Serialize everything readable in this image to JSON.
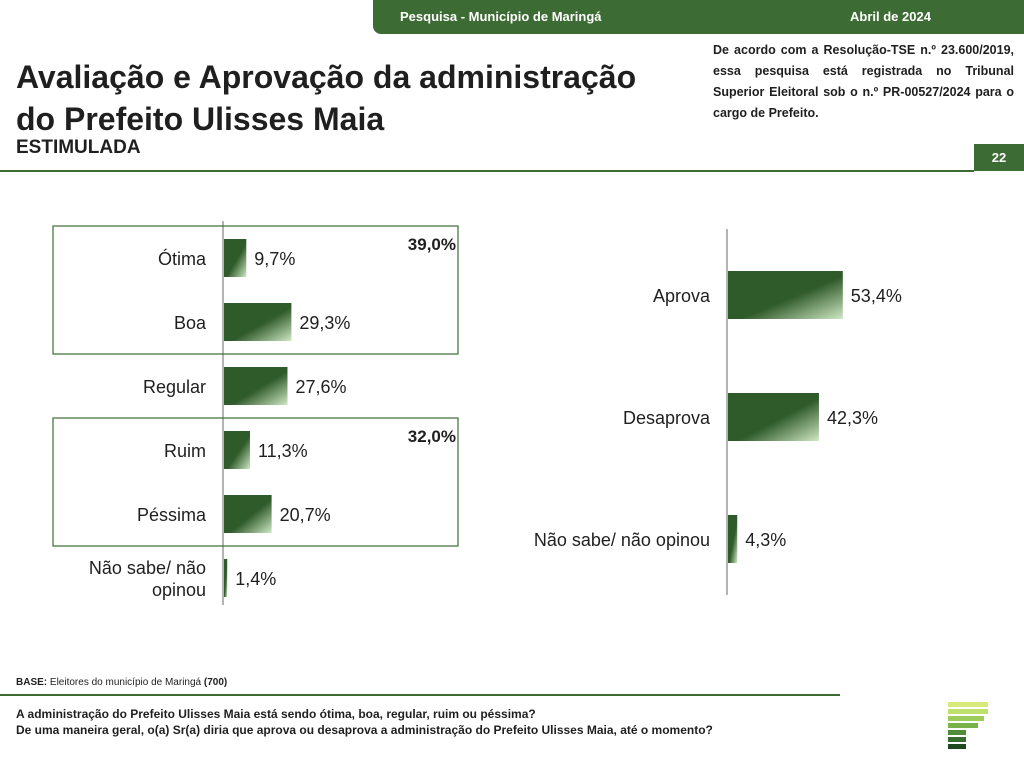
{
  "header": {
    "survey": "Pesquisa - Município de Maringá",
    "date": "Abril de 2024"
  },
  "title": {
    "line1": "Avaliação e Aprovação da administração",
    "line2": "do Prefeito Ulisses Maia",
    "subtitle": "ESTIMULADA"
  },
  "tse_note": "De acordo com a Resolução-TSE n.º 23.600/2019, essa pesquisa está registrada no Tribunal Superior Eleitoral sob o n.º PR-00527/2024 para o cargo de Prefeito.",
  "page_number": "22",
  "colors": {
    "brand": "#3d6b34",
    "bar_dark": "#2f5a29",
    "bar_light": "#cfe8c4"
  },
  "chart_data": [
    {
      "type": "bar",
      "orientation": "horizontal",
      "categories": [
        "Ótima",
        "Boa",
        "Regular",
        "Ruim",
        "Péssima",
        "Não sabe/ não opinou"
      ],
      "category_lines": [
        [
          "Ótima"
        ],
        [
          "Boa"
        ],
        [
          "Regular"
        ],
        [
          "Ruim"
        ],
        [
          "Péssima"
        ],
        [
          "Não sabe/ não",
          "opinou"
        ]
      ],
      "values": [
        9.7,
        29.3,
        27.6,
        11.3,
        20.7,
        1.4
      ],
      "value_labels": [
        "9,7%",
        "29,3%",
        "27,6%",
        "11,3%",
        "20,7%",
        "1,4%"
      ],
      "groups": [
        {
          "label": "39,0%",
          "members": [
            0,
            1
          ]
        },
        {
          "label": "32,0%",
          "members": [
            3,
            4
          ]
        }
      ],
      "unit": "%"
    },
    {
      "type": "bar",
      "orientation": "horizontal",
      "categories": [
        "Aprova",
        "Desaprova",
        "Não sabe/ não opinou"
      ],
      "category_lines": [
        [
          "Aprova"
        ],
        [
          "Desaprova"
        ],
        [
          "Não sabe/ não opinou"
        ]
      ],
      "values": [
        53.4,
        42.3,
        4.3
      ],
      "value_labels": [
        "53,4%",
        "42,3%",
        "4,3%"
      ],
      "unit": "%"
    }
  ],
  "footer": {
    "base_label": "BASE:",
    "base_text": "Eleitores do município de Maringá",
    "base_count": "(700)",
    "question1": "A administração do Prefeito Ulisses Maia está sendo ótima, boa, regular, ruim ou péssima?",
    "question2": "De uma maneira geral, o(a) Sr(a) diria que aprova ou desaprova a administração do Prefeito Ulisses Maia, até o momento?"
  }
}
